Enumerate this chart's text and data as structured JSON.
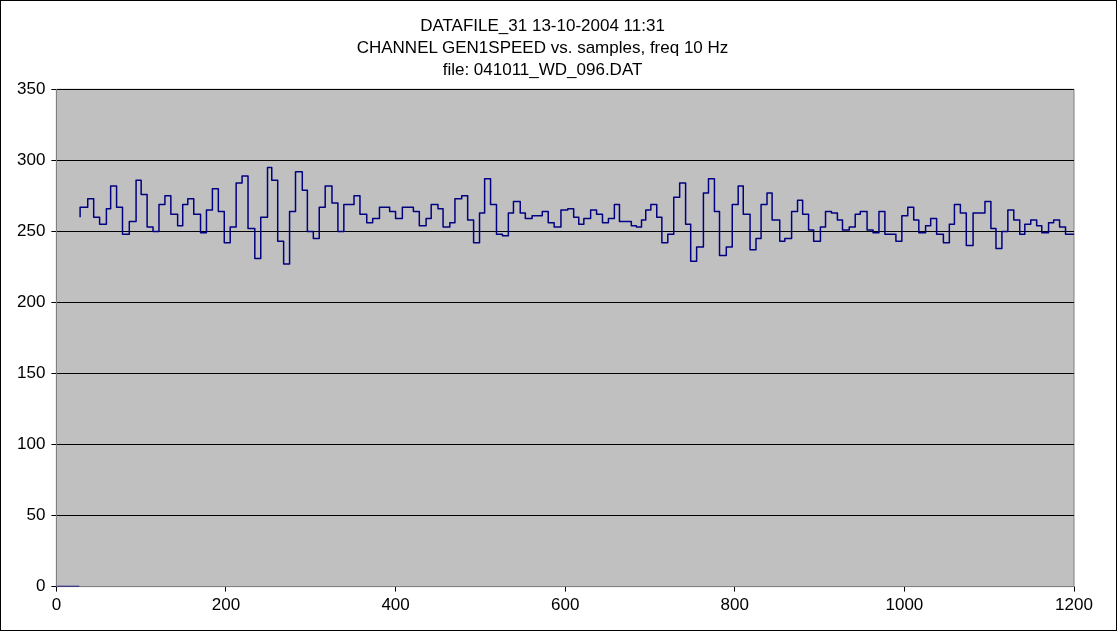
{
  "chart_data": {
    "type": "step",
    "title": "DATAFILE_31 13-10-2004 11:31",
    "subtitle": "CHANNEL GEN1SPEED vs. samples, freq 10 Hz\nfile: 041011_WD_096.DAT",
    "x": [
      0,
      27,
      27.5,
      28,
      37,
      44,
      51,
      59,
      64,
      71,
      78,
      86,
      94,
      100,
      107,
      114,
      121,
      128,
      135,
      143,
      149,
      155,
      162,
      170,
      177,
      184,
      191,
      198,
      205,
      212,
      219,
      226,
      234,
      241,
      249,
      254,
      261,
      268,
      275,
      282,
      290,
      296,
      303,
      310,
      317,
      325,
      332,
      339,
      351,
      358,
      366,
      373,
      381,
      393,
      400,
      408,
      421,
      428,
      436,
      442,
      450,
      456,
      464,
      470,
      478,
      485,
      492,
      499,
      505,
      512,
      519,
      526,
      533,
      539,
      547,
      553,
      561,
      573,
      580,
      587,
      595,
      603,
      610,
      616,
      622,
      630,
      637,
      644,
      651,
      658,
      664,
      678,
      684,
      690,
      695,
      701,
      708,
      714,
      721,
      728,
      735,
      742,
      748,
      755,
      763,
      769,
      776,
      782,
      790,
      797,
      804,
      810,
      818,
      825,
      831,
      838,
      844,
      853,
      859,
      867,
      874,
      880,
      887,
      893,
      901,
      907,
      914,
      921,
      927,
      935,
      942,
      948,
      956,
      963,
      970,
      977,
      990,
      997,
      1004,
      1011,
      1017,
      1025,
      1031,
      1038,
      1046,
      1053,
      1059,
      1066,
      1073,
      1081,
      1095,
      1102,
      1108,
      1115,
      1122,
      1129,
      1136,
      1142,
      1149,
      1156,
      1162,
      1170,
      1176,
      1183,
      1190,
      1197,
      1200
    ],
    "series": [
      {
        "color": "#000080",
        "values": [
          0,
          0,
          null,
          260,
          267,
          273,
          260,
          255,
          266,
          282,
          267,
          248,
          257,
          286,
          276,
          253,
          250,
          269,
          275,
          262,
          254,
          269,
          273,
          262,
          249,
          265,
          280,
          264,
          242,
          253,
          284,
          289,
          252,
          231,
          260,
          295,
          286,
          243,
          227,
          264,
          292,
          279,
          250,
          245,
          267,
          282,
          270,
          250,
          269,
          275,
          262,
          256,
          259,
          267,
          264,
          259,
          267,
          264,
          254,
          259,
          269,
          266,
          253,
          256,
          273,
          275,
          258,
          242,
          263,
          287,
          269,
          248,
          247,
          263,
          271,
          263,
          259,
          261,
          264,
          256,
          253,
          265,
          266,
          260,
          255,
          259,
          265,
          262,
          256,
          259,
          269,
          257,
          254,
          253,
          258,
          265,
          269,
          260,
          242,
          248,
          274,
          284,
          255,
          229,
          239,
          277,
          287,
          264,
          233,
          239,
          269,
          282,
          262,
          237,
          245,
          269,
          277,
          258,
          243,
          245,
          264,
          272,
          262,
          251,
          243,
          253,
          264,
          263,
          258,
          251,
          253,
          262,
          264,
          251,
          249,
          264,
          248,
          243,
          261,
          267,
          258,
          249,
          254,
          259,
          248,
          242,
          255,
          269,
          263,
          240,
          263,
          271,
          252,
          238,
          250,
          265,
          258,
          248,
          255,
          258,
          254,
          249,
          256,
          258,
          253,
          248,
          248
        ]
      }
    ],
    "xlim": [
      0,
      1200
    ],
    "xticks": [
      0,
      200,
      400,
      600,
      800,
      1000,
      1200
    ],
    "ylim": [
      0,
      350
    ],
    "yticks": [
      0,
      50,
      100,
      150,
      200,
      250,
      300,
      350
    ],
    "grid": "y",
    "legend": false,
    "marker": "none",
    "line_style": "solid"
  }
}
